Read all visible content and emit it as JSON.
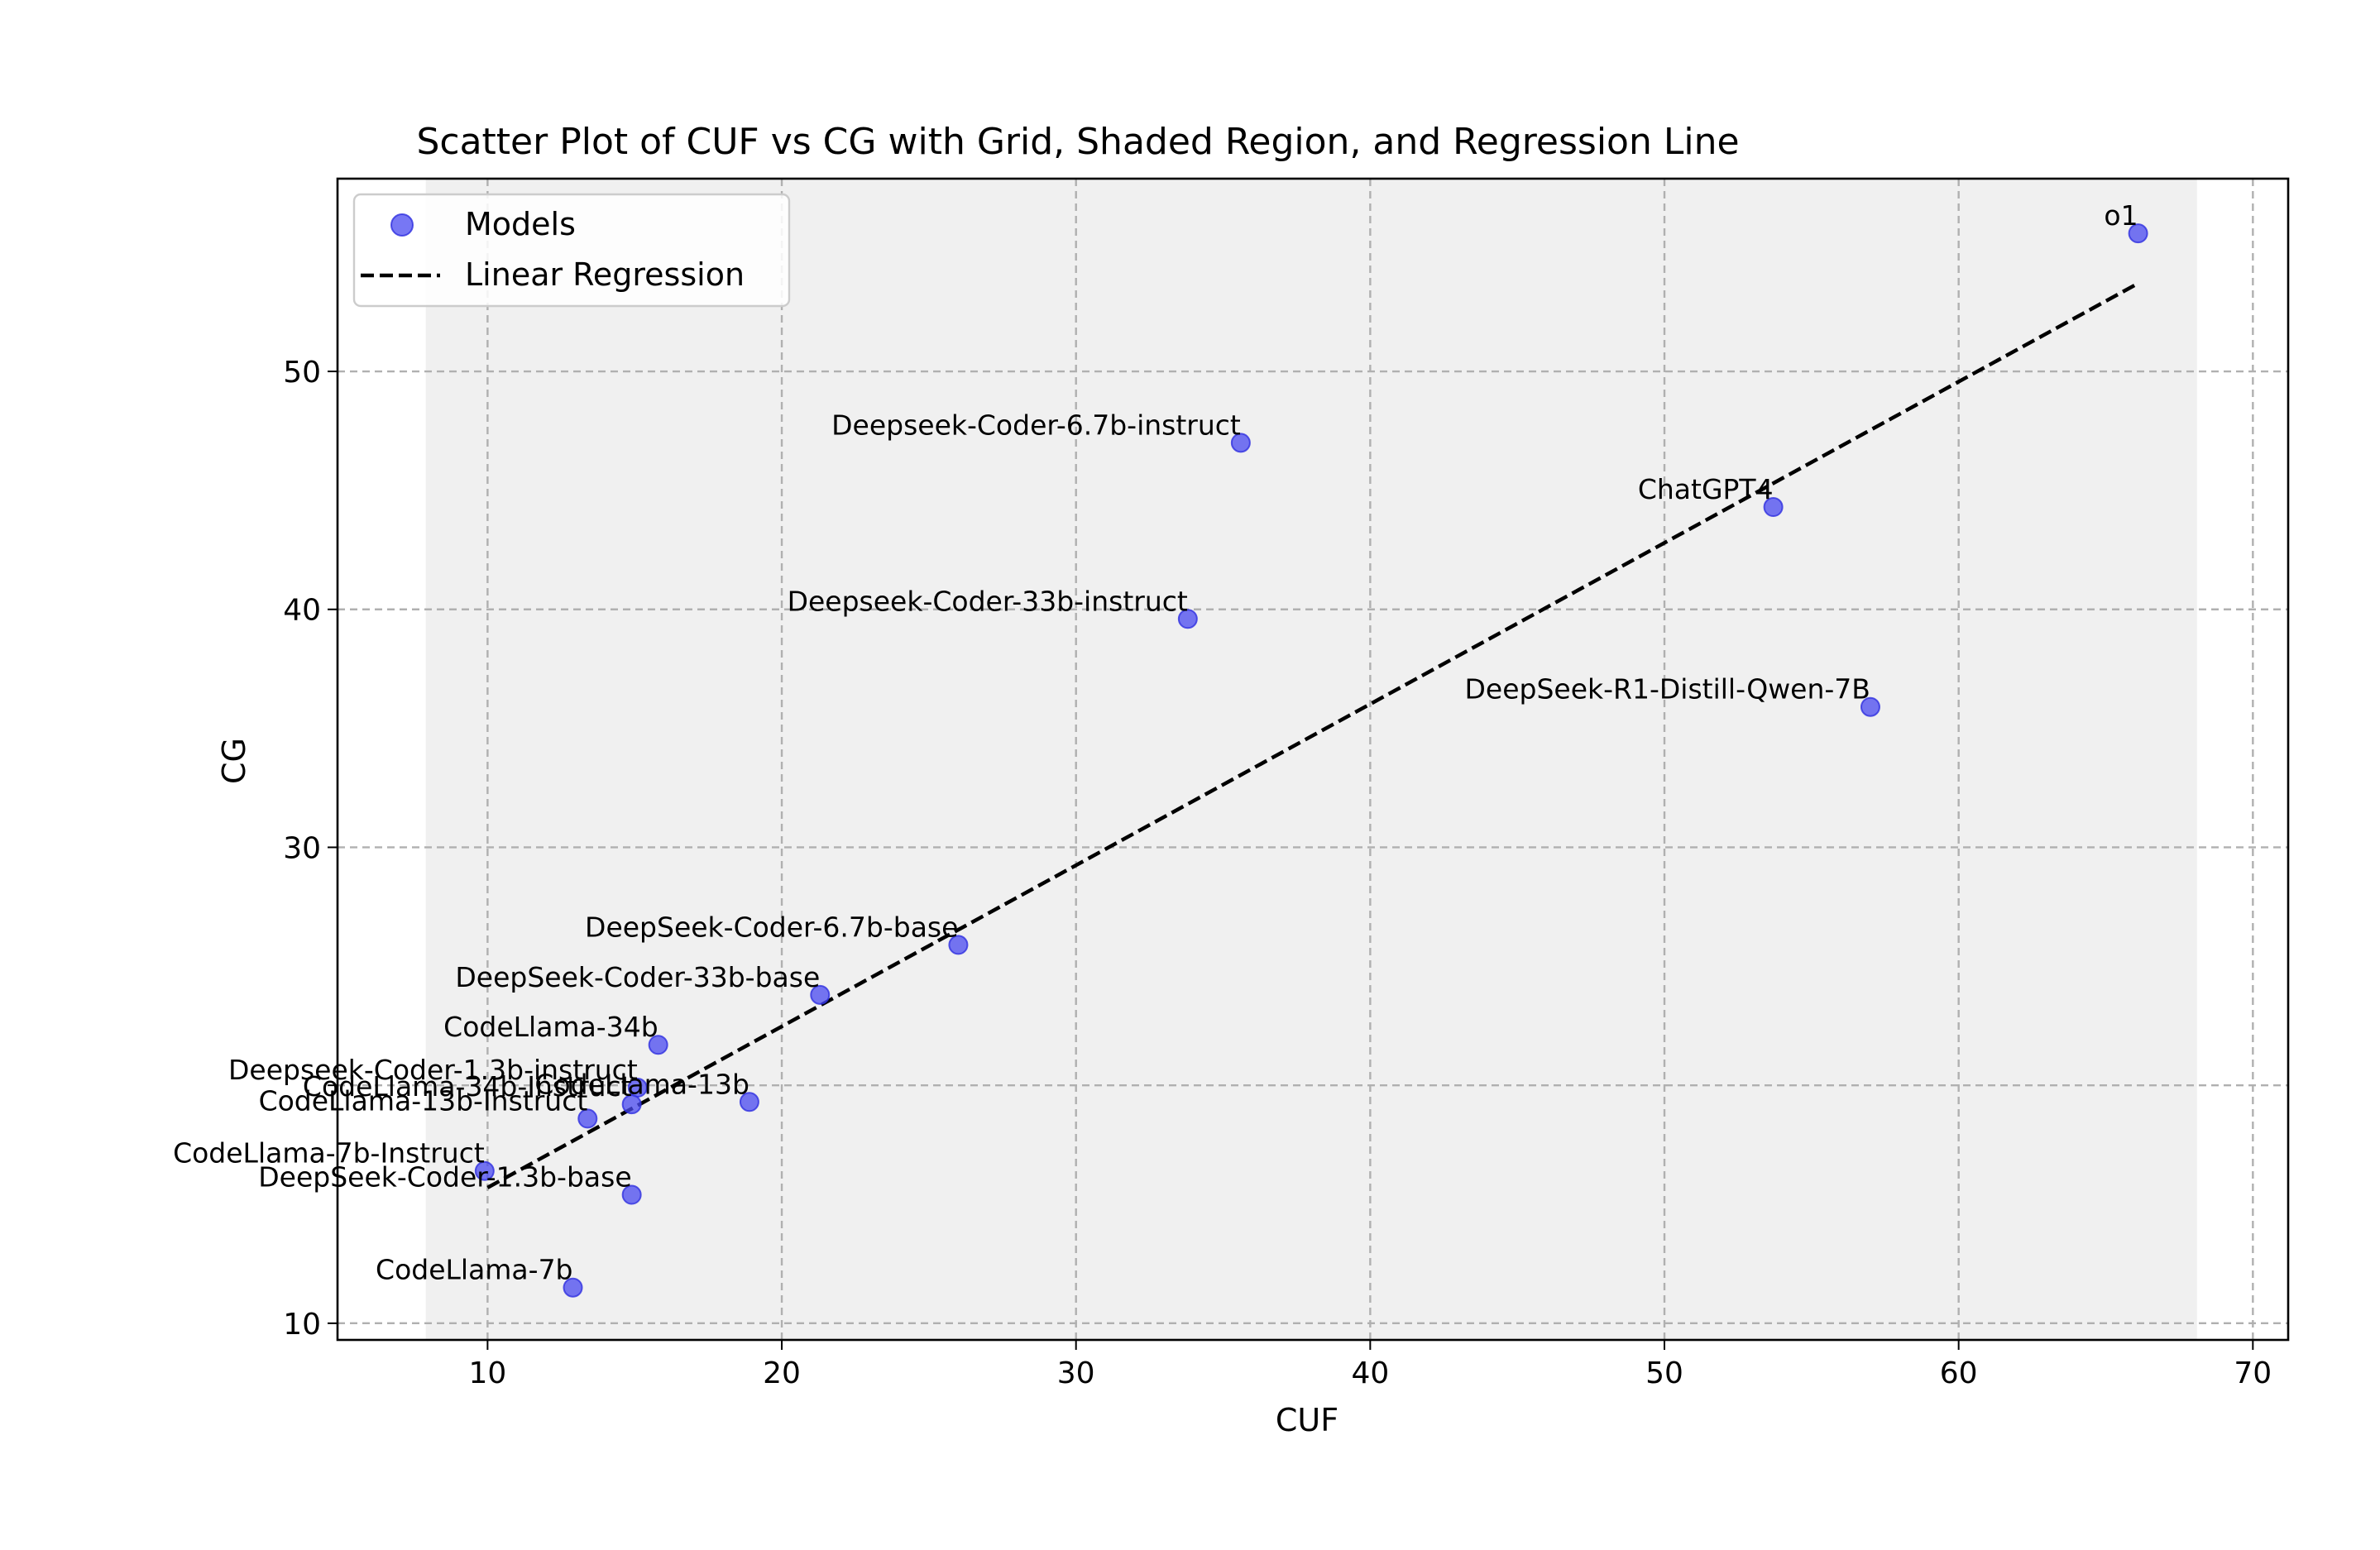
{
  "chart_data": {
    "type": "scatter",
    "title": "Scatter Plot of CUF vs CG with Grid, Shaded Region, and Regression Line",
    "xlabel": "CUF",
    "ylabel": "CG",
    "xlim": [
      4.9,
      71.2
    ],
    "ylim": [
      9.3,
      58.1
    ],
    "xticks": [
      10,
      20,
      30,
      40,
      50,
      60,
      70
    ],
    "yticks": [
      10,
      20,
      30,
      40,
      50
    ],
    "xtick_labels": [
      "10",
      "20",
      "30",
      "40",
      "50",
      "60",
      "70"
    ],
    "ytick_labels": [
      "10",
      "",
      "30",
      "40",
      "50"
    ],
    "grid": true,
    "shaded_region": {
      "x": [
        7.9,
        68.1
      ],
      "color": "#f0f0f0"
    },
    "legend": {
      "placement": "top-left",
      "entries": [
        "Models",
        "Linear Regression"
      ]
    },
    "colors": {
      "points": "#4a4af0",
      "regression": "#000000",
      "shade": "#f0f0f0",
      "grid": "#b0b0b0"
    },
    "regression": {
      "x": [
        10.0,
        66.1
      ],
      "y": [
        15.7,
        53.7
      ]
    },
    "series": [
      {
        "name": "Models",
        "points": [
          {
            "label": "o1",
            "x": 66.1,
            "y": 55.8
          },
          {
            "label": "Deepseek-Coder-6.7b-instruct",
            "x": 35.6,
            "y": 47.0
          },
          {
            "label": "ChatGPT4",
            "x": 53.7,
            "y": 44.3
          },
          {
            "label": "Deepseek-Coder-33b-instruct",
            "x": 33.8,
            "y": 39.6
          },
          {
            "label": "DeepSeek-R1-Distill-Qwen-7B",
            "x": 57.0,
            "y": 35.9
          },
          {
            "label": "DeepSeek-Coder-6.7b-base",
            "x": 26.0,
            "y": 25.9
          },
          {
            "label": "DeepSeek-Coder-33b-base",
            "x": 21.3,
            "y": 23.8
          },
          {
            "label": "CodeLlama-34b",
            "x": 15.8,
            "y": 21.7
          },
          {
            "label": "Deepseek-Coder-1.3b-instruct",
            "x": 15.1,
            "y": 19.9
          },
          {
            "label": "CodeLlama-13b",
            "x": 18.9,
            "y": 19.3
          },
          {
            "label": "CodeLlama-34b-Instruct",
            "x": 14.9,
            "y": 19.2
          },
          {
            "label": "CodeLlama-13b-Instruct",
            "x": 13.4,
            "y": 18.6
          },
          {
            "label": "CodeLlama-7b-Instruct",
            "x": 9.9,
            "y": 16.4
          },
          {
            "label": "DeepSeek-Coder-1.3b-base",
            "x": 14.9,
            "y": 15.4
          },
          {
            "label": "CodeLlama-7b",
            "x": 12.9,
            "y": 11.5
          }
        ]
      }
    ]
  }
}
